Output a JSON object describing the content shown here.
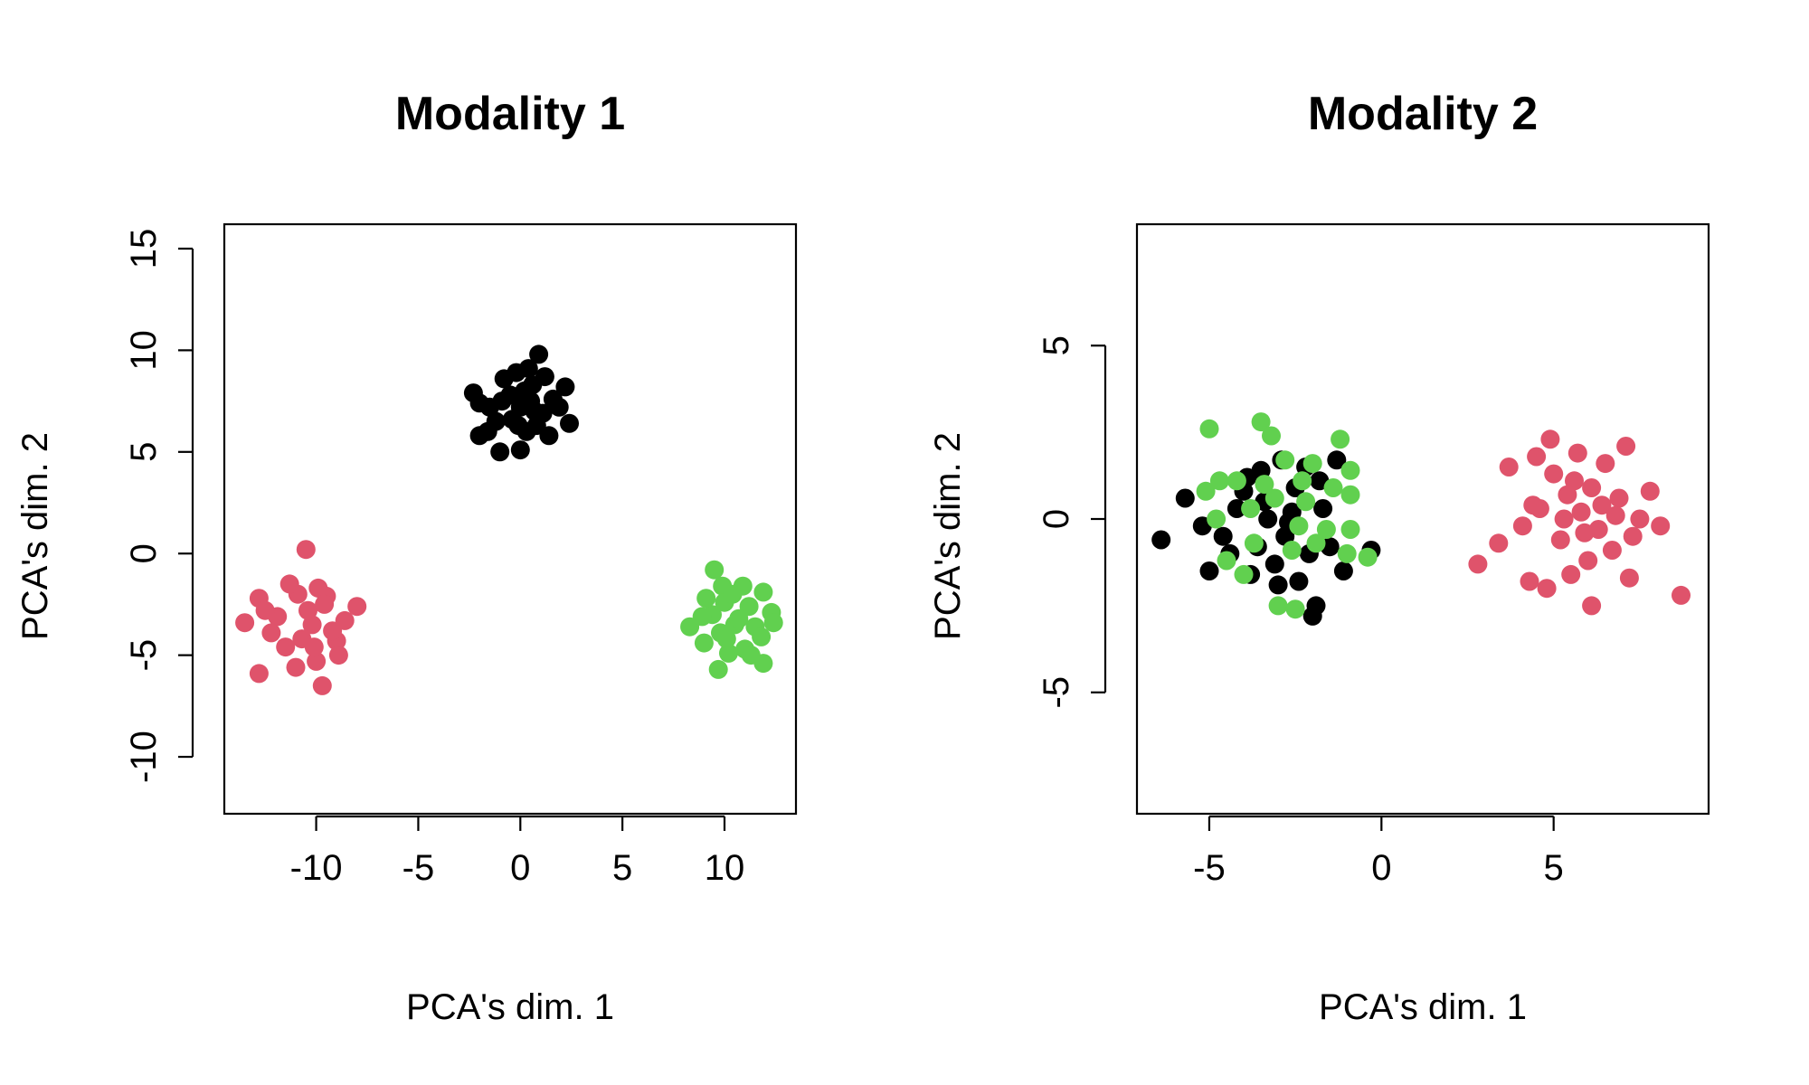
{
  "chart_data": [
    {
      "type": "scatter",
      "title": "Modality 1",
      "xlabel": "PCA's dim. 1",
      "ylabel": "PCA's dim. 2",
      "xlim": [
        -14.5,
        13.5
      ],
      "ylim": [
        -12.8,
        16.2
      ],
      "xticks": [
        -10,
        -5,
        0,
        5,
        10
      ],
      "yticks": [
        -10,
        -5,
        0,
        5,
        10,
        15
      ],
      "grid": false,
      "series": [
        {
          "color": "#000000",
          "points": [
            [
              0,
              7.2
            ],
            [
              -0.5,
              7.8
            ],
            [
              0.6,
              8.3
            ],
            [
              -1.2,
              6.5
            ],
            [
              1.1,
              6.9
            ],
            [
              0.3,
              6.0
            ],
            [
              -0.8,
              8.6
            ],
            [
              1.6,
              7.6
            ],
            [
              -2.0,
              7.4
            ],
            [
              0.9,
              9.8
            ],
            [
              -1.0,
              5.0
            ],
            [
              0.0,
              5.1
            ],
            [
              2.4,
              6.4
            ],
            [
              -2.3,
              7.9
            ],
            [
              2.2,
              8.2
            ],
            [
              0.4,
              9.1
            ],
            [
              -0.2,
              8.9
            ],
            [
              -1.6,
              6.0
            ],
            [
              1.4,
              5.8
            ],
            [
              -2.0,
              5.8
            ],
            [
              0.7,
              7.0
            ],
            [
              -0.4,
              6.6
            ],
            [
              0.2,
              8.0
            ],
            [
              1.9,
              7.2
            ],
            [
              -1.5,
              7.2
            ],
            [
              0.8,
              6.3
            ],
            [
              -0.9,
              7.5
            ],
            [
              1.2,
              8.7
            ],
            [
              -0.1,
              6.3
            ],
            [
              0.5,
              7.5
            ]
          ]
        },
        {
          "color": "#DF536B",
          "points": [
            [
              -10.2,
              -3.5
            ],
            [
              -10.5,
              0.2
            ],
            [
              -12.8,
              -2.2
            ],
            [
              -13.5,
              -3.4
            ],
            [
              -12.8,
              -5.9
            ],
            [
              -9.7,
              -6.5
            ],
            [
              -8.0,
              -2.6
            ],
            [
              -11.5,
              -4.6
            ],
            [
              -9.0,
              -4.3
            ],
            [
              -10.9,
              -2.0
            ],
            [
              -9.5,
              -2.1
            ],
            [
              -11.9,
              -3.1
            ],
            [
              -8.6,
              -3.3
            ],
            [
              -10.0,
              -5.3
            ],
            [
              -11.0,
              -5.6
            ],
            [
              -9.9,
              -1.7
            ],
            [
              -10.7,
              -4.2
            ],
            [
              -12.2,
              -3.9
            ],
            [
              -9.2,
              -3.8
            ],
            [
              -10.4,
              -2.8
            ],
            [
              -11.3,
              -1.5
            ],
            [
              -8.9,
              -5.0
            ],
            [
              -10.1,
              -4.6
            ],
            [
              -12.5,
              -2.8
            ],
            [
              -9.6,
              -2.5
            ]
          ]
        },
        {
          "color": "#61D04F",
          "points": [
            [
              10.5,
              -3.5
            ],
            [
              9.5,
              -0.8
            ],
            [
              8.3,
              -3.6
            ],
            [
              9.7,
              -5.7
            ],
            [
              11.9,
              -5.4
            ],
            [
              12.3,
              -2.9
            ],
            [
              12.4,
              -3.4
            ],
            [
              11.9,
              -1.9
            ],
            [
              9.9,
              -1.6
            ],
            [
              11.0,
              -4.7
            ],
            [
              9.0,
              -4.4
            ],
            [
              10.0,
              -2.4
            ],
            [
              10.9,
              -1.6
            ],
            [
              11.5,
              -3.6
            ],
            [
              9.4,
              -3.0
            ],
            [
              10.2,
              -4.9
            ],
            [
              11.2,
              -2.6
            ],
            [
              9.1,
              -2.2
            ],
            [
              10.7,
              -3.2
            ],
            [
              11.8,
              -4.1
            ],
            [
              9.8,
              -3.9
            ],
            [
              10.4,
              -2.0
            ],
            [
              11.3,
              -5.0
            ],
            [
              8.9,
              -3.1
            ],
            [
              10.1,
              -4.2
            ]
          ]
        }
      ]
    },
    {
      "type": "scatter",
      "title": "Modality 2",
      "xlabel": "PCA's dim. 1",
      "ylabel": "PCA's dim. 2",
      "xlim": [
        -7.1,
        9.5
      ],
      "ylim": [
        -8.5,
        8.5
      ],
      "xticks": [
        -5,
        0,
        5
      ],
      "yticks": [
        -5,
        0,
        5
      ],
      "grid": false,
      "series": [
        {
          "color": "#000000",
          "points": [
            [
              -6.4,
              -0.6
            ],
            [
              -5.7,
              0.6
            ],
            [
              -5.2,
              -0.2
            ],
            [
              -5.0,
              -1.5
            ],
            [
              -4.6,
              -0.5
            ],
            [
              -4.2,
              0.3
            ],
            [
              -3.9,
              1.2
            ],
            [
              -3.6,
              -0.8
            ],
            [
              -3.4,
              0.5
            ],
            [
              -3.1,
              -1.3
            ],
            [
              -2.9,
              1.7
            ],
            [
              -2.7,
              -0.1
            ],
            [
              -2.5,
              0.9
            ],
            [
              -2.4,
              -1.8
            ],
            [
              -2.2,
              1.5
            ],
            [
              -2.0,
              -2.8
            ],
            [
              -1.9,
              -2.5
            ],
            [
              -1.7,
              0.3
            ],
            [
              -1.5,
              -0.8
            ],
            [
              -1.3,
              1.7
            ],
            [
              -1.1,
              -1.5
            ],
            [
              -0.3,
              -0.9
            ],
            [
              -3.0,
              -1.9
            ],
            [
              -3.8,
              -1.6
            ],
            [
              -2.6,
              0.2
            ],
            [
              -4.4,
              -1.0
            ],
            [
              -3.3,
              0.0
            ],
            [
              -2.1,
              -1.0
            ],
            [
              -1.8,
              1.1
            ],
            [
              -4.0,
              0.8
            ],
            [
              -2.8,
              -0.5
            ],
            [
              -3.5,
              1.4
            ]
          ]
        },
        {
          "color": "#61D04F",
          "points": [
            [
              -5.0,
              2.6
            ],
            [
              -3.5,
              2.8
            ],
            [
              -3.2,
              2.4
            ],
            [
              -1.2,
              2.3
            ],
            [
              -0.9,
              1.4
            ],
            [
              -5.1,
              0.8
            ],
            [
              -4.7,
              1.1
            ],
            [
              -4.5,
              -1.2
            ],
            [
              -4.0,
              -1.6
            ],
            [
              -3.8,
              0.3
            ],
            [
              -3.0,
              -2.5
            ],
            [
              -2.5,
              -2.6
            ],
            [
              -2.2,
              0.5
            ],
            [
              -2.0,
              1.6
            ],
            [
              -1.6,
              -0.3
            ],
            [
              -1.0,
              -1.0
            ],
            [
              -0.4,
              -1.1
            ],
            [
              -0.9,
              0.7
            ],
            [
              -0.9,
              -0.3
            ],
            [
              -4.2,
              1.1
            ],
            [
              -3.7,
              -0.7
            ],
            [
              -3.4,
              1.0
            ],
            [
              -2.8,
              1.7
            ],
            [
              -2.6,
              -0.9
            ],
            [
              -2.3,
              1.1
            ],
            [
              -1.9,
              -0.7
            ],
            [
              -1.4,
              0.9
            ],
            [
              -4.8,
              0.0
            ],
            [
              -3.1,
              0.6
            ],
            [
              -2.4,
              -0.2
            ]
          ]
        },
        {
          "color": "#DF536B",
          "points": [
            [
              2.8,
              -1.3
            ],
            [
              3.4,
              -0.7
            ],
            [
              3.7,
              1.5
            ],
            [
              4.1,
              -0.2
            ],
            [
              4.3,
              -1.8
            ],
            [
              4.5,
              1.8
            ],
            [
              4.6,
              0.3
            ],
            [
              4.8,
              -2.0
            ],
            [
              4.9,
              2.3
            ],
            [
              5.0,
              1.3
            ],
            [
              5.2,
              -0.6
            ],
            [
              5.4,
              0.7
            ],
            [
              5.5,
              -1.6
            ],
            [
              5.7,
              1.9
            ],
            [
              5.8,
              0.2
            ],
            [
              6.0,
              -1.2
            ],
            [
              6.1,
              0.9
            ],
            [
              6.1,
              -2.5
            ],
            [
              6.3,
              -0.3
            ],
            [
              6.5,
              1.6
            ],
            [
              6.7,
              -0.9
            ],
            [
              6.9,
              0.6
            ],
            [
              7.1,
              2.1
            ],
            [
              7.2,
              -1.7
            ],
            [
              7.5,
              0.0
            ],
            [
              7.8,
              0.8
            ],
            [
              8.1,
              -0.2
            ],
            [
              8.7,
              -2.2
            ],
            [
              5.3,
              0.0
            ],
            [
              5.9,
              -0.4
            ],
            [
              6.4,
              0.4
            ],
            [
              5.6,
              1.1
            ],
            [
              4.4,
              0.4
            ],
            [
              6.8,
              0.1
            ],
            [
              7.3,
              -0.5
            ]
          ]
        }
      ]
    }
  ]
}
